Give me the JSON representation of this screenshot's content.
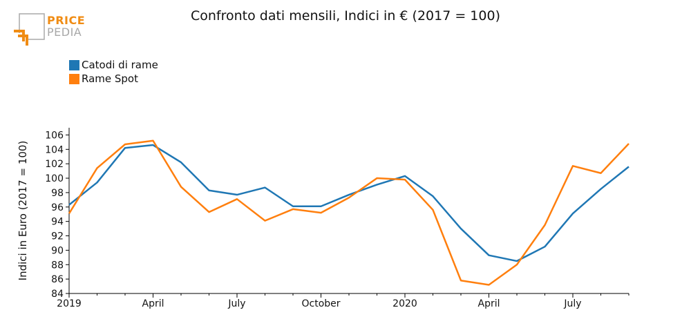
{
  "brand": {
    "name_top": "PRICE",
    "name_bottom": "PEDIA",
    "accent": "#f08c14",
    "muted": "#a8a8a8"
  },
  "chart_data": {
    "type": "line",
    "title": "Confronto dati mensili, Indici in € (2017 = 100)",
    "xlabel": "",
    "ylabel": "Indici in Euro (2017 = 100)",
    "ylim": [
      84,
      107
    ],
    "yticks": [
      84,
      86,
      88,
      90,
      92,
      94,
      96,
      98,
      100,
      102,
      104,
      106
    ],
    "x": [
      "2019-01",
      "2019-02",
      "2019-03",
      "2019-04",
      "2019-05",
      "2019-06",
      "2019-07",
      "2019-08",
      "2019-09",
      "2019-10",
      "2019-11",
      "2019-12",
      "2020-01",
      "2020-02",
      "2020-03",
      "2020-04",
      "2020-05",
      "2020-06",
      "2020-07",
      "2020-08",
      "2020-09"
    ],
    "xticks": [
      {
        "x": "2019-01",
        "label": "2019"
      },
      {
        "x": "2019-04",
        "label": "April"
      },
      {
        "x": "2019-07",
        "label": "July"
      },
      {
        "x": "2019-10",
        "label": "October"
      },
      {
        "x": "2020-01",
        "label": "2020"
      },
      {
        "x": "2020-04",
        "label": "April"
      },
      {
        "x": "2020-07",
        "label": "July"
      }
    ],
    "legend_position": "top-left",
    "grid": false,
    "series": [
      {
        "name": "Catodi di rame",
        "color": "#1f77b4",
        "values": [
          96.3,
          99.4,
          104.2,
          104.6,
          102.2,
          98.3,
          97.7,
          98.7,
          96.1,
          96.1,
          97.7,
          99.1,
          100.3,
          97.5,
          93.0,
          89.3,
          88.5,
          90.5,
          95.1,
          98.5,
          101.6
        ]
      },
      {
        "name": "Rame Spot",
        "color": "#ff7f0e",
        "values": [
          95.1,
          101.4,
          104.7,
          105.2,
          98.8,
          95.3,
          97.1,
          94.1,
          95.7,
          95.2,
          97.3,
          100.0,
          99.8,
          95.6,
          85.8,
          85.2,
          88.0,
          93.5,
          101.7,
          100.7,
          104.8
        ]
      }
    ]
  }
}
